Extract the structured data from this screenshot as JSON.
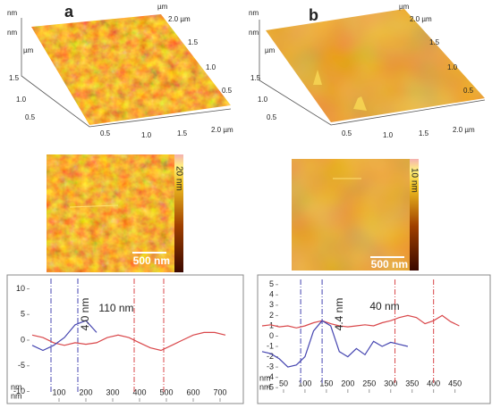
{
  "panels": [
    {
      "label": "a",
      "surface_labels": [
        "nm",
        "nm",
        "µm",
        "µm",
        "2.0 µm",
        "1.5",
        "1.0",
        "0.5",
        "1.5",
        "1.0",
        "0.5",
        "0.5",
        "1.0",
        "1.5",
        "2.0 µm"
      ],
      "image": {
        "colorbar_label": "20 nm",
        "scale_bar": "500 nm"
      }
    },
    {
      "label": "b",
      "surface_labels": [
        "nm",
        "nm",
        "µm",
        "µm",
        "2.0 µm",
        "1.5",
        "1.0",
        "0.5",
        "1.5",
        "1.0",
        "0.5",
        "0.5",
        "1.0",
        "1.5",
        "2.0 µm"
      ],
      "image": {
        "colorbar_label": "10 nm",
        "scale_bar": "500 nm"
      }
    }
  ],
  "chart_data": [
    {
      "type": "line",
      "x_label": "nm",
      "y_label": "nm",
      "x": [
        0,
        40,
        80,
        120,
        160,
        200,
        240,
        280,
        320,
        360,
        400,
        440,
        480,
        520,
        560,
        600,
        640,
        680,
        720
      ],
      "series": [
        {
          "color": "#d9474a",
          "values": [
            1,
            0.5,
            -0.5,
            -1,
            -0.5,
            -0.8,
            -0.5,
            0.5,
            1,
            0.5,
            -0.5,
            -1.5,
            -2,
            -1,
            0,
            1,
            1.5,
            1.5,
            1
          ]
        },
        {
          "color": "#4545b0",
          "values": [
            -1,
            -2,
            -1,
            0.5,
            3,
            3.8,
            1.5,
            null,
            null,
            null,
            null,
            null,
            null,
            null,
            null,
            null,
            null,
            null,
            null
          ]
        }
      ],
      "vlines": [
        {
          "x": 70,
          "color": "#4545b0"
        },
        {
          "x": 170,
          "color": "#4545b0"
        },
        {
          "x": 380,
          "color": "#d9474a"
        },
        {
          "x": 490,
          "color": "#d9474a"
        }
      ],
      "annotations": [
        "4.0 nm",
        "110 nm"
      ],
      "xlim": [
        0,
        780
      ],
      "ylim": [
        -12,
        12
      ],
      "xticks": [
        100,
        200,
        300,
        400,
        500,
        600,
        700
      ],
      "yticks": [
        10,
        5,
        0,
        -5,
        -10
      ]
    },
    {
      "type": "line",
      "x_label": "nm",
      "y_label": "nm",
      "x": [
        0,
        20,
        40,
        60,
        80,
        100,
        120,
        140,
        160,
        180,
        200,
        220,
        240,
        260,
        280,
        300,
        320,
        340,
        360,
        380,
        400,
        420,
        440,
        460,
        480
      ],
      "series": [
        {
          "color": "#d9474a",
          "values": [
            1,
            1.1,
            0.9,
            1,
            0.8,
            1,
            1.3,
            1.5,
            1.2,
            1,
            0.9,
            1,
            1.1,
            1,
            1.3,
            1.5,
            1.8,
            2,
            1.8,
            1.2,
            1.5,
            2,
            1.4,
            1,
            null
          ]
        },
        {
          "color": "#4545b0",
          "values": [
            -1.5,
            -1.7,
            -2.2,
            -3,
            -2.8,
            -2,
            0.5,
            1.5,
            1,
            -1.5,
            -2,
            -1.2,
            -1.8,
            -0.5,
            -1,
            -0.6,
            -0.8,
            -1,
            null,
            null,
            null,
            null,
            null,
            null,
            null
          ]
        }
      ],
      "vlines": [
        {
          "x": 90,
          "color": "#4545b0"
        },
        {
          "x": 140,
          "color": "#4545b0"
        },
        {
          "x": 310,
          "color": "#d9474a"
        },
        {
          "x": 400,
          "color": "#d9474a"
        }
      ],
      "annotations": [
        "4.4 nm",
        "40 nm"
      ],
      "xlim": [
        0,
        480
      ],
      "ylim": [
        -5.5,
        5.5
      ],
      "xticks": [
        50,
        100,
        150,
        200,
        250,
        300,
        350,
        400,
        450
      ],
      "yticks": [
        5,
        4,
        3,
        2,
        1,
        0,
        -1,
        -2,
        -3,
        -4,
        -5
      ]
    }
  ]
}
